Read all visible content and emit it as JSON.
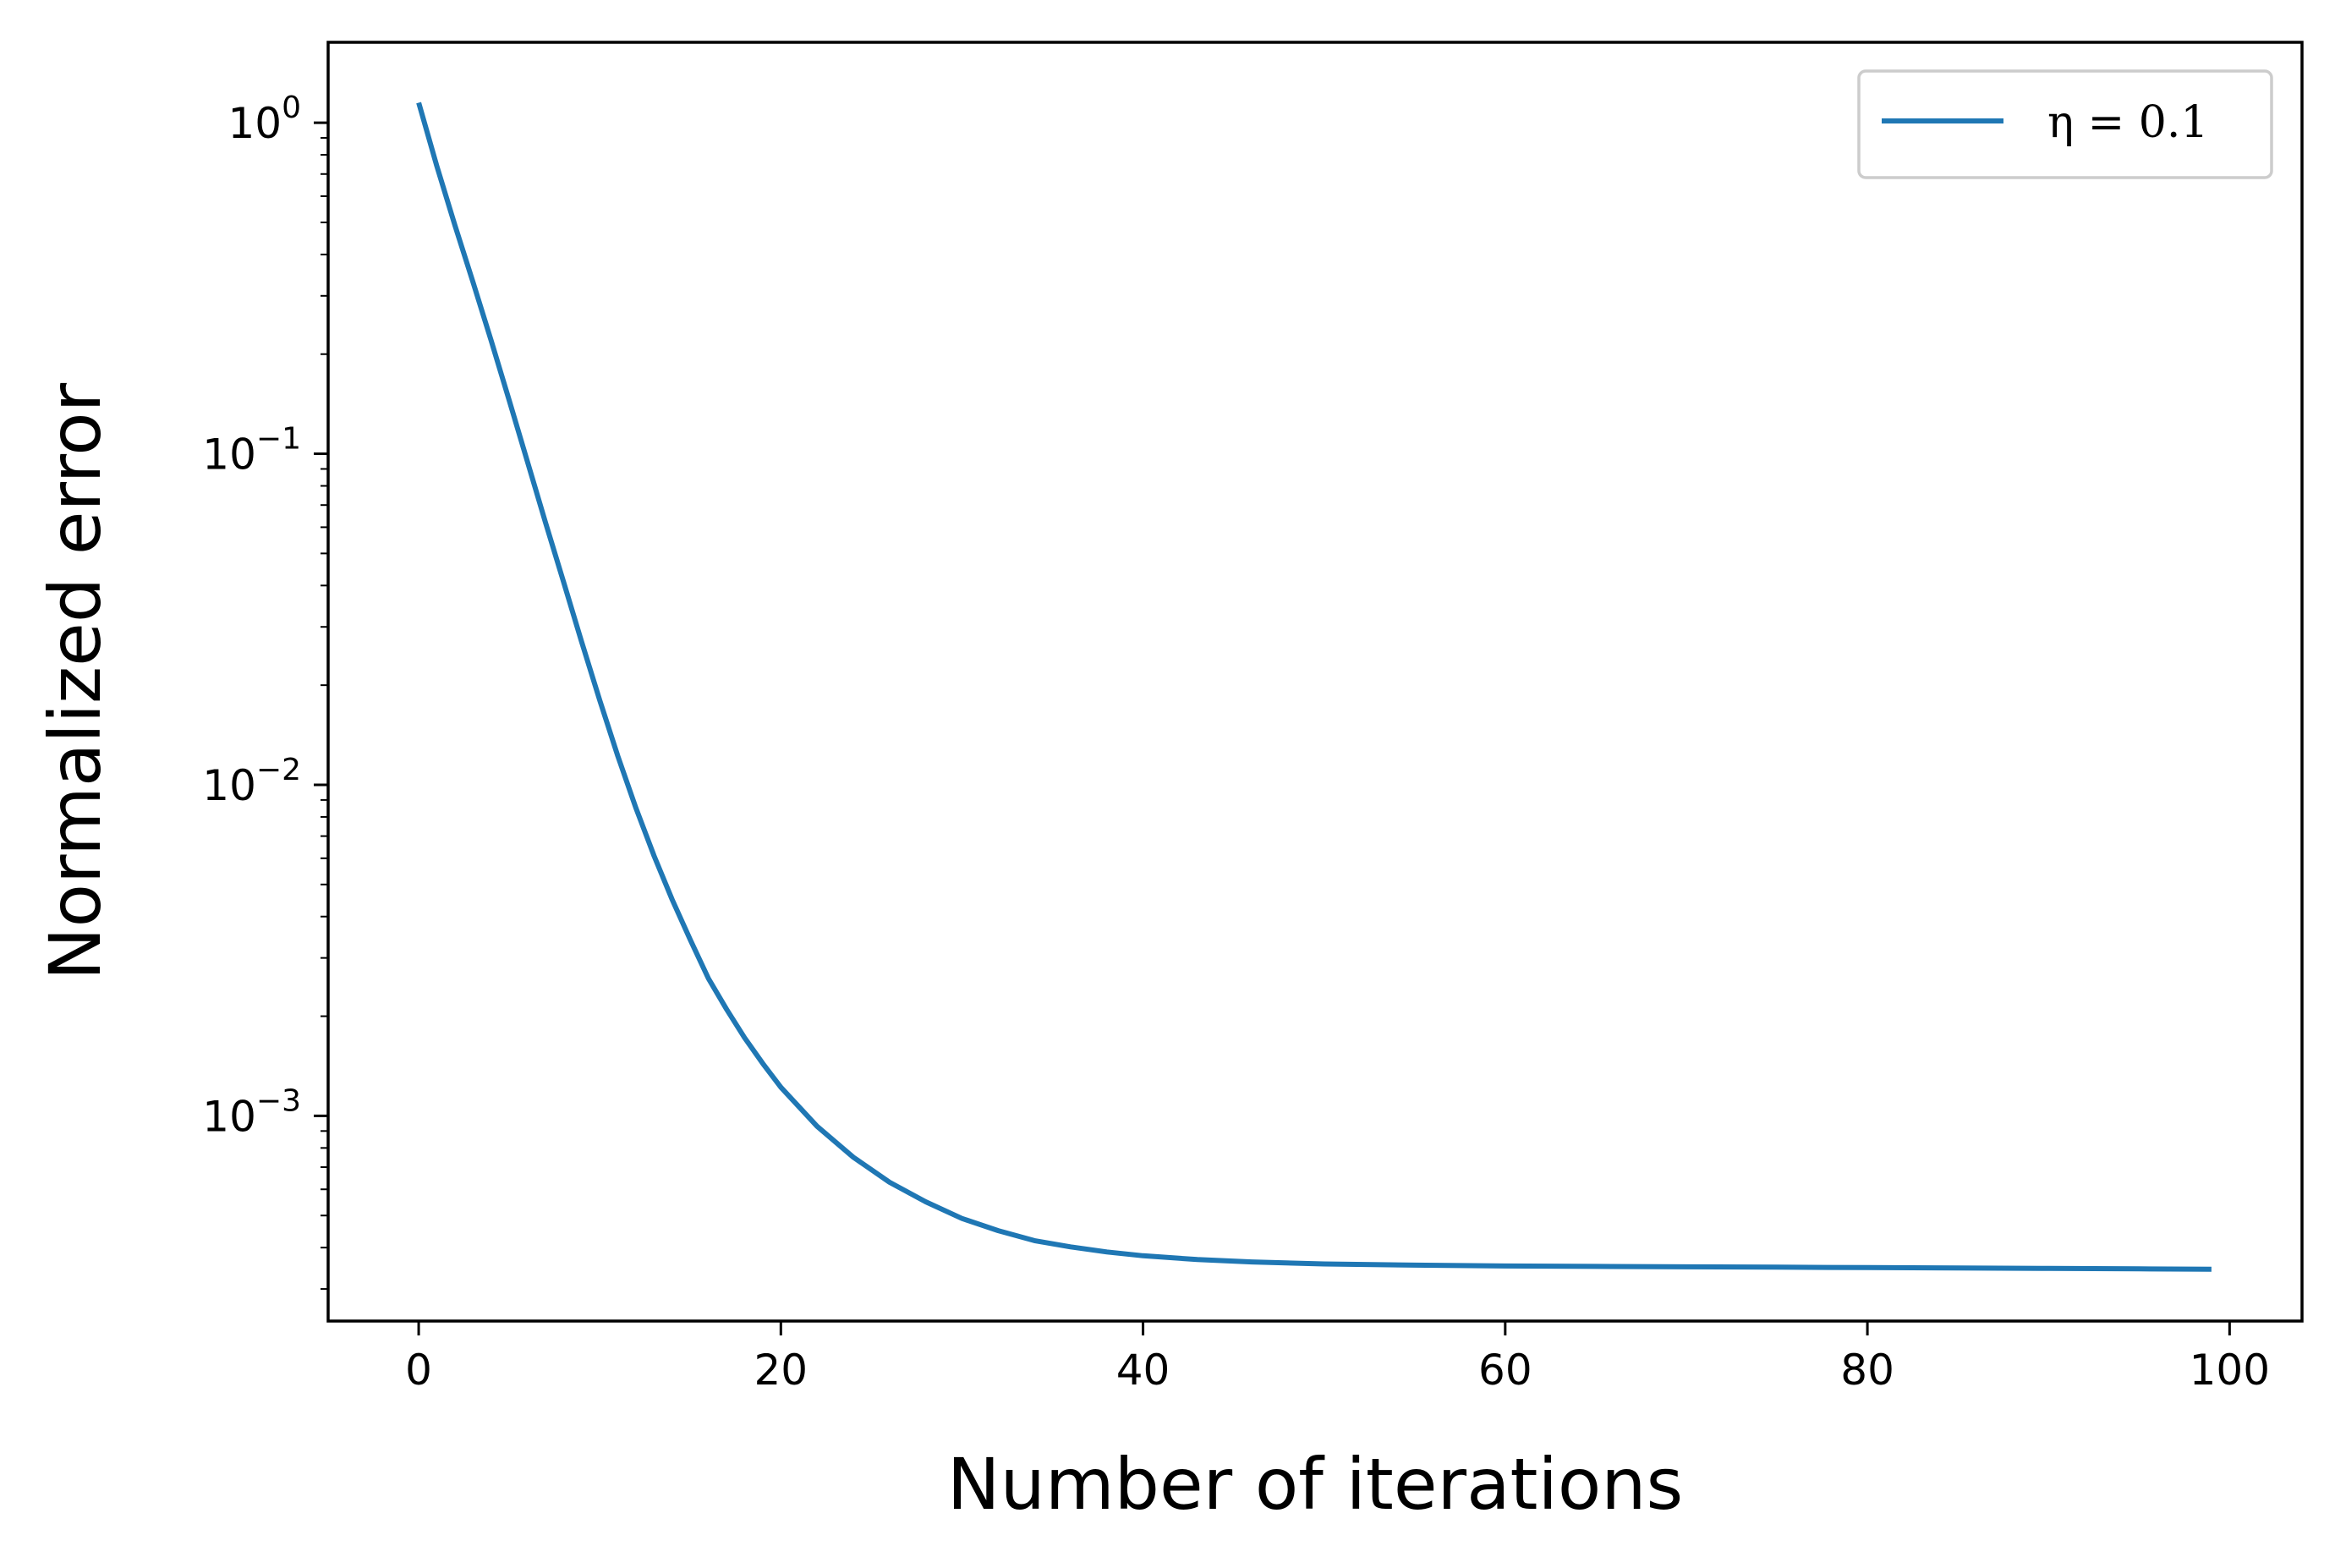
{
  "chart_data": {
    "type": "line",
    "xlabel": "Number of iterations",
    "ylabel": "Normalized error",
    "xlim": [
      -5,
      104
    ],
    "ylim": [
      0.00024,
      1.75
    ],
    "yscale": "log",
    "grid": false,
    "legend_position": "top-right",
    "xticks": [
      "0",
      "20",
      "40",
      "60",
      "80",
      "100"
    ],
    "yticks": [
      {
        "base": "10",
        "exp": "0"
      },
      {
        "base": "10",
        "exp": "−1"
      },
      {
        "base": "10",
        "exp": "−2"
      },
      {
        "base": "10",
        "exp": "−3"
      }
    ],
    "series": [
      {
        "name": "η = 0.1",
        "color": "#1f77b4",
        "x": [
          0,
          1,
          2,
          3,
          4,
          5,
          6,
          7,
          8,
          9,
          10,
          11,
          12,
          13,
          14,
          15,
          16,
          17,
          18,
          19,
          20,
          22,
          24,
          26,
          28,
          30,
          32,
          34,
          36,
          38,
          40,
          43,
          46,
          50,
          55,
          60,
          65,
          70,
          75,
          80,
          85,
          90,
          95,
          99
        ],
        "y": [
          1.15,
          0.74,
          0.49,
          0.33,
          0.22,
          0.145,
          0.095,
          0.062,
          0.041,
          0.027,
          0.018,
          0.0122,
          0.0085,
          0.0061,
          0.0045,
          0.0034,
          0.0026,
          0.0021,
          0.00172,
          0.00144,
          0.00122,
          0.00093,
          0.00075,
          0.00063,
          0.00055,
          0.00049,
          0.00045,
          0.00042,
          0.000402,
          0.000388,
          0.000378,
          0.000368,
          0.000362,
          0.000357,
          0.000354,
          0.000352,
          0.000351,
          0.00035,
          0.000349,
          0.000348,
          0.000347,
          0.000346,
          0.000345,
          0.000344
        ]
      }
    ]
  }
}
